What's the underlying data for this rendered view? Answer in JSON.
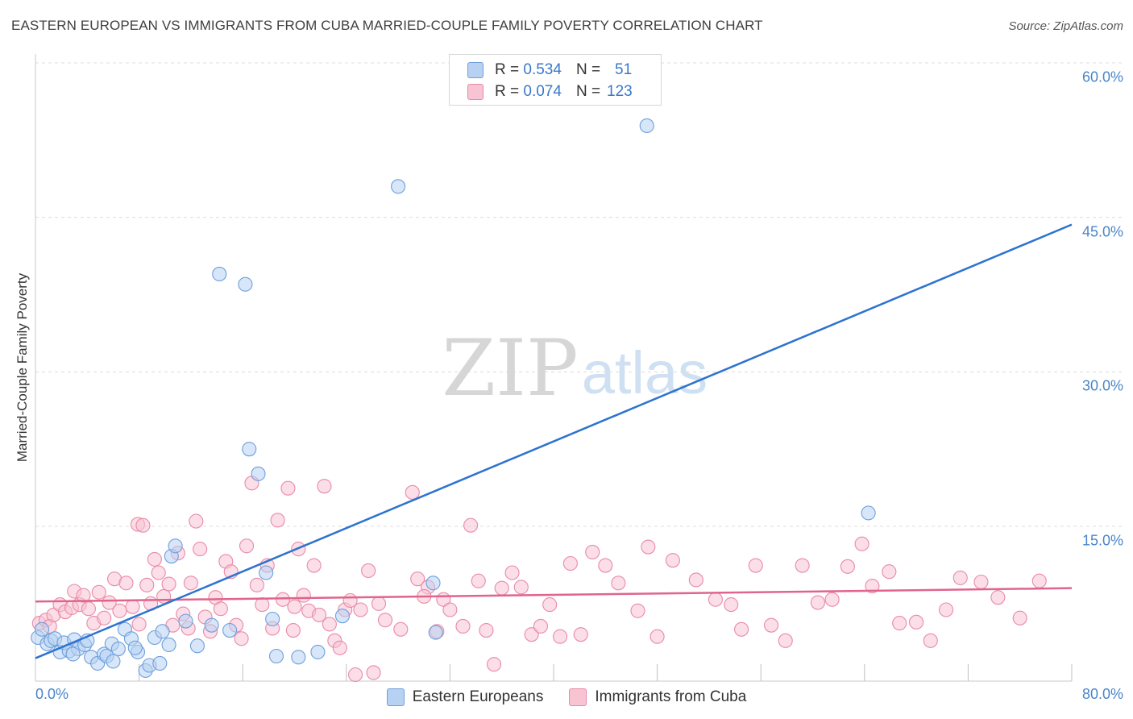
{
  "title": "EASTERN EUROPEAN VS IMMIGRANTS FROM CUBA MARRIED-COUPLE FAMILY POVERTY CORRELATION CHART",
  "source": "Source: ZipAtlas.com",
  "watermark": {
    "zip": "ZIP",
    "atlas": "atlas"
  },
  "colors": {
    "blue_fill": "#b7d1f2",
    "blue_stroke": "#6f9fdc",
    "blue_line": "#2d73cf",
    "pink_fill": "#f8c3d3",
    "pink_stroke": "#e98aa8",
    "pink_line": "#e0648c",
    "tick_text": "#4a86c8",
    "grid": "#dcdcdc"
  },
  "legend": {
    "series1": {
      "r_label": "R =",
      "r_value": "0.534",
      "n_label": "N =",
      "n_value": "51"
    },
    "series2": {
      "r_label": "R =",
      "r_value": "0.074",
      "n_label": "N =",
      "n_value": "123"
    }
  },
  "chart_data": {
    "type": "scatter",
    "title": "EASTERN EUROPEAN VS IMMIGRANTS FROM CUBA MARRIED-COUPLE FAMILY POVERTY CORRELATION CHART",
    "xlabel": "",
    "ylabel": "Married-Couple Family Poverty",
    "xlim": [
      0,
      80
    ],
    "ylim": [
      0,
      63
    ],
    "x_tick_labels": [
      {
        "value": 0,
        "label": "0.0%"
      },
      {
        "value": 80,
        "label": "80.0%"
      }
    ],
    "y_tick_labels": [
      {
        "value": 15,
        "label": "15.0%"
      },
      {
        "value": 30,
        "label": "30.0%"
      },
      {
        "value": 45,
        "label": "45.0%"
      },
      {
        "value": 60,
        "label": "60.0%"
      }
    ],
    "x_gridlines": [
      8,
      16,
      24,
      32,
      40,
      48,
      56,
      64,
      72,
      80
    ],
    "y_gridlines": [
      15,
      30,
      45,
      60
    ],
    "grid": true,
    "legend_position": "top-center",
    "series": [
      {
        "name": "Eastern Europeans",
        "color": "#b7d1f2",
        "trend": {
          "x": [
            0,
            80
          ],
          "y": [
            2.2,
            44.3
          ]
        },
        "points": [
          [
            0.2,
            4.2
          ],
          [
            0.5,
            5.0
          ],
          [
            0.9,
            3.6
          ],
          [
            1.2,
            3.9
          ],
          [
            1.5,
            4.1
          ],
          [
            1.9,
            2.8
          ],
          [
            2.2,
            3.7
          ],
          [
            2.6,
            2.9
          ],
          [
            3.0,
            4.0
          ],
          [
            3.3,
            3.1
          ],
          [
            3.8,
            3.5
          ],
          [
            4.3,
            2.3
          ],
          [
            4.8,
            1.7
          ],
          [
            5.3,
            2.6
          ],
          [
            5.9,
            3.6
          ],
          [
            6.4,
            3.1
          ],
          [
            6.9,
            5.0
          ],
          [
            7.4,
            4.1
          ],
          [
            7.9,
            2.8
          ],
          [
            8.5,
            1.0
          ],
          [
            8.8,
            1.5
          ],
          [
            9.2,
            4.2
          ],
          [
            9.6,
            1.7
          ],
          [
            10.3,
            3.5
          ],
          [
            10.5,
            12.1
          ],
          [
            10.8,
            13.1
          ],
          [
            11.6,
            5.8
          ],
          [
            12.5,
            3.4
          ],
          [
            13.6,
            5.4
          ],
          [
            14.2,
            39.5
          ],
          [
            15.0,
            4.9
          ],
          [
            16.2,
            38.5
          ],
          [
            16.5,
            22.5
          ],
          [
            17.2,
            20.1
          ],
          [
            17.8,
            10.5
          ],
          [
            18.3,
            6.0
          ],
          [
            18.6,
            2.4
          ],
          [
            20.3,
            2.3
          ],
          [
            21.8,
            2.8
          ],
          [
            23.7,
            6.3
          ],
          [
            28.0,
            48.0
          ],
          [
            30.7,
            9.5
          ],
          [
            30.9,
            4.7
          ],
          [
            47.2,
            53.9
          ],
          [
            64.3,
            16.3
          ],
          [
            5.5,
            2.4
          ],
          [
            2.9,
            2.6
          ],
          [
            4.0,
            3.9
          ],
          [
            6.0,
            1.9
          ],
          [
            7.7,
            3.2
          ],
          [
            9.8,
            4.8
          ]
        ]
      },
      {
        "name": "Immigrants from Cuba",
        "color": "#f8c3d3",
        "trend": {
          "x": [
            0,
            80
          ],
          "y": [
            7.7,
            9.0
          ]
        },
        "points": [
          [
            0.3,
            5.6
          ],
          [
            0.8,
            5.9
          ],
          [
            1.1,
            5.3
          ],
          [
            1.4,
            6.4
          ],
          [
            1.9,
            7.4
          ],
          [
            2.3,
            6.7
          ],
          [
            2.8,
            7.1
          ],
          [
            3.0,
            8.7
          ],
          [
            3.4,
            7.4
          ],
          [
            3.7,
            8.3
          ],
          [
            4.1,
            7.0
          ],
          [
            4.5,
            5.6
          ],
          [
            4.9,
            8.6
          ],
          [
            5.3,
            6.1
          ],
          [
            5.7,
            7.6
          ],
          [
            6.1,
            9.9
          ],
          [
            6.5,
            6.8
          ],
          [
            7.0,
            9.5
          ],
          [
            7.5,
            7.2
          ],
          [
            7.9,
            15.2
          ],
          [
            8.3,
            15.1
          ],
          [
            8.6,
            9.3
          ],
          [
            8.9,
            7.5
          ],
          [
            9.2,
            11.8
          ],
          [
            9.5,
            10.5
          ],
          [
            9.9,
            8.2
          ],
          [
            10.3,
            9.4
          ],
          [
            10.6,
            5.4
          ],
          [
            11.0,
            12.4
          ],
          [
            11.4,
            6.5
          ],
          [
            11.8,
            5.1
          ],
          [
            12.4,
            15.5
          ],
          [
            12.7,
            12.8
          ],
          [
            13.1,
            6.2
          ],
          [
            13.5,
            4.8
          ],
          [
            13.9,
            8.1
          ],
          [
            14.3,
            7.0
          ],
          [
            14.7,
            11.6
          ],
          [
            15.1,
            10.6
          ],
          [
            15.5,
            5.4
          ],
          [
            15.9,
            4.1
          ],
          [
            16.3,
            13.1
          ],
          [
            16.7,
            19.2
          ],
          [
            17.1,
            9.3
          ],
          [
            17.5,
            7.4
          ],
          [
            17.9,
            11.2
          ],
          [
            18.3,
            5.1
          ],
          [
            18.7,
            15.6
          ],
          [
            19.1,
            7.9
          ],
          [
            19.5,
            18.7
          ],
          [
            19.9,
            4.9
          ],
          [
            20.3,
            12.8
          ],
          [
            20.7,
            8.3
          ],
          [
            21.1,
            6.8
          ],
          [
            21.5,
            11.2
          ],
          [
            21.9,
            6.4
          ],
          [
            22.3,
            18.9
          ],
          [
            22.7,
            5.5
          ],
          [
            23.1,
            3.9
          ],
          [
            23.5,
            3.2
          ],
          [
            23.9,
            6.9
          ],
          [
            24.3,
            7.8
          ],
          [
            24.7,
            0.6
          ],
          [
            25.1,
            6.9
          ],
          [
            25.7,
            10.7
          ],
          [
            26.1,
            0.8
          ],
          [
            26.5,
            7.5
          ],
          [
            27.0,
            5.9
          ],
          [
            28.2,
            5.0
          ],
          [
            29.1,
            18.3
          ],
          [
            29.5,
            9.9
          ],
          [
            30.3,
            9.1
          ],
          [
            31.0,
            4.8
          ],
          [
            31.5,
            7.9
          ],
          [
            32.0,
            6.9
          ],
          [
            33.0,
            5.3
          ],
          [
            33.6,
            15.1
          ],
          [
            34.2,
            9.7
          ],
          [
            34.8,
            4.9
          ],
          [
            35.4,
            1.6
          ],
          [
            36.0,
            9.0
          ],
          [
            36.8,
            10.5
          ],
          [
            37.5,
            9.1
          ],
          [
            38.3,
            4.5
          ],
          [
            39.0,
            5.3
          ],
          [
            39.7,
            7.4
          ],
          [
            40.5,
            4.3
          ],
          [
            41.3,
            11.4
          ],
          [
            42.1,
            4.5
          ],
          [
            43.0,
            12.5
          ],
          [
            44.0,
            11.2
          ],
          [
            45.0,
            9.5
          ],
          [
            46.5,
            6.8
          ],
          [
            47.3,
            13.0
          ],
          [
            48.0,
            4.3
          ],
          [
            49.2,
            11.7
          ],
          [
            51.0,
            9.8
          ],
          [
            52.5,
            7.9
          ],
          [
            53.7,
            7.4
          ],
          [
            54.5,
            5.0
          ],
          [
            55.6,
            11.2
          ],
          [
            56.8,
            5.4
          ],
          [
            57.9,
            3.9
          ],
          [
            59.2,
            11.2
          ],
          [
            60.4,
            7.6
          ],
          [
            61.5,
            7.9
          ],
          [
            62.7,
            11.1
          ],
          [
            63.8,
            13.3
          ],
          [
            64.6,
            9.2
          ],
          [
            65.9,
            10.6
          ],
          [
            66.7,
            5.6
          ],
          [
            68.0,
            5.7
          ],
          [
            69.1,
            3.9
          ],
          [
            70.3,
            6.9
          ],
          [
            71.4,
            10.0
          ],
          [
            73.0,
            9.6
          ],
          [
            74.3,
            8.1
          ],
          [
            76.0,
            6.1
          ],
          [
            77.5,
            9.7
          ],
          [
            8.0,
            5.5
          ],
          [
            12.0,
            9.5
          ],
          [
            20.0,
            7.2
          ],
          [
            30.0,
            8.2
          ]
        ]
      }
    ]
  }
}
